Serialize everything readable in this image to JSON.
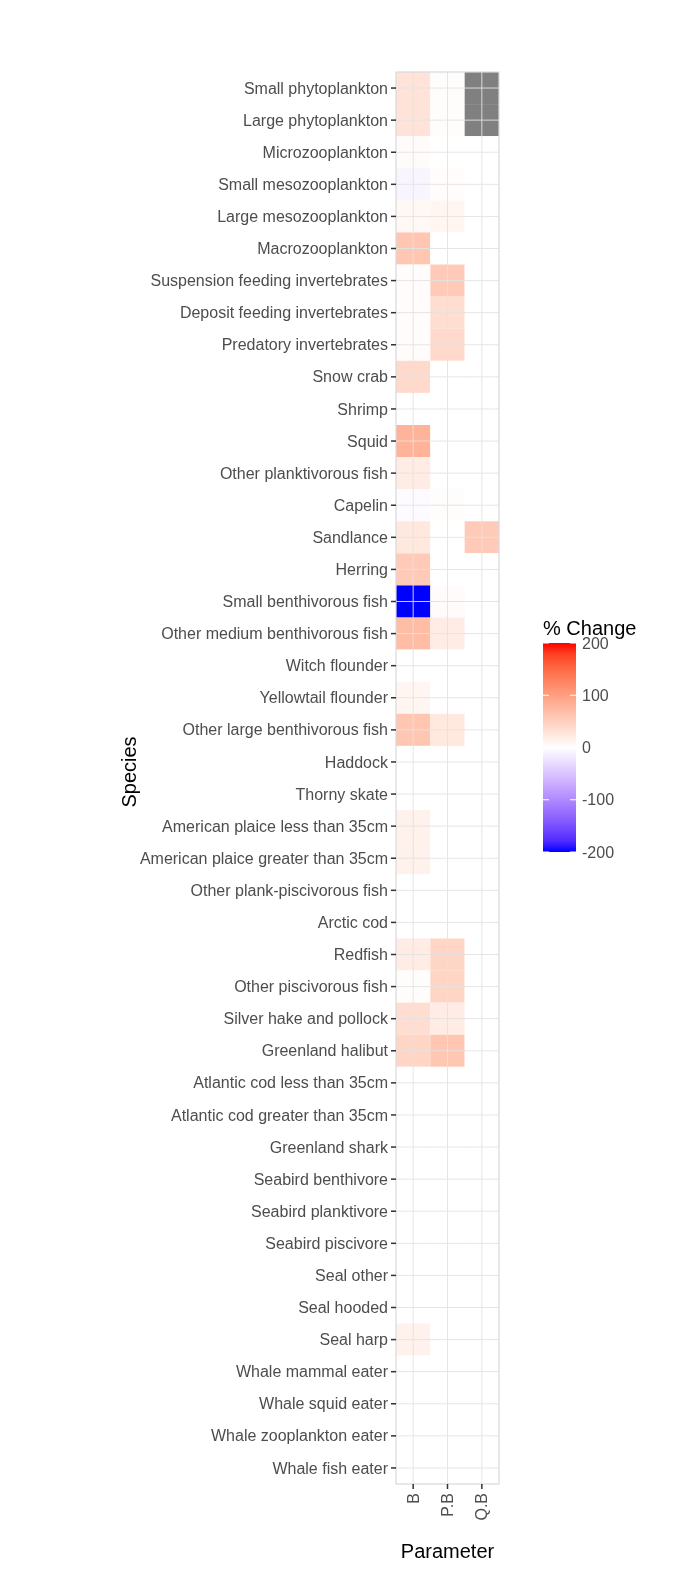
{
  "chart_data": {
    "type": "heatmap",
    "xlabel": "Parameter",
    "ylabel": "Species",
    "clabel": "% Change",
    "categories": [
      "B",
      "P.B",
      "Q.B"
    ],
    "y_categories": [
      "Small phytoplankton",
      "Large phytoplankton",
      "Microzooplankton",
      "Small mesozooplankton",
      "Large mesozooplankton",
      "Macrozooplankton",
      "Suspension feeding invertebrates",
      "Deposit feeding invertebrates",
      "Predatory invertebrates",
      "Snow crab",
      "Shrimp",
      "Squid",
      "Other planktivorous fish",
      "Capelin",
      "Sandlance",
      "Herring",
      "Small benthivorous fish",
      "Other medium benthivorous fish",
      "Witch flounder",
      "Yellowtail flounder",
      "Other large benthivorous fish",
      "Haddock",
      "Thorny skate",
      "American plaice less than 35cm",
      "American plaice greater than 35cm",
      "Other plank-piscivorous fish",
      "Arctic cod",
      "Redfish",
      "Other piscivorous fish",
      "Silver hake and pollock",
      "Greenland halibut",
      "Atlantic cod less than 35cm",
      "Atlantic cod greater than 35cm",
      "Greenland shark",
      "Seabird benthivore",
      "Seabird planktivore",
      "Seabird piscivore",
      "Seal other",
      "Seal hooded",
      "Seal harp",
      "Whale mammal eater",
      "Whale squid eater",
      "Whale zooplankton eater",
      "Whale fish eater"
    ],
    "cells": [
      [
        30,
        2,
        null
      ],
      [
        30,
        2,
        null
      ],
      [
        4,
        0,
        0
      ],
      [
        -8,
        3,
        0
      ],
      [
        8,
        10,
        0
      ],
      [
        60,
        0,
        0
      ],
      [
        3,
        55,
        0
      ],
      [
        3,
        35,
        0
      ],
      [
        3,
        40,
        0
      ],
      [
        40,
        0,
        0
      ],
      [
        0,
        0,
        0
      ],
      [
        80,
        0,
        0
      ],
      [
        20,
        0,
        0
      ],
      [
        -3,
        2,
        0
      ],
      [
        25,
        0,
        55
      ],
      [
        55,
        0,
        0
      ],
      [
        -200,
        4,
        0
      ],
      [
        70,
        20,
        0
      ],
      [
        0,
        0,
        0
      ],
      [
        10,
        0,
        0
      ],
      [
        60,
        25,
        0
      ],
      [
        0,
        0,
        0
      ],
      [
        0,
        0,
        0
      ],
      [
        15,
        0,
        0
      ],
      [
        15,
        0,
        0
      ],
      [
        0,
        0,
        0
      ],
      [
        0,
        0,
        0
      ],
      [
        20,
        45,
        0
      ],
      [
        2,
        45,
        0
      ],
      [
        35,
        20,
        0
      ],
      [
        45,
        60,
        0
      ],
      [
        0,
        0,
        0
      ],
      [
        0,
        0,
        0
      ],
      [
        0,
        0,
        0
      ],
      [
        0,
        0,
        0
      ],
      [
        0,
        0,
        0
      ],
      [
        0,
        0,
        0
      ],
      [
        0,
        0,
        0
      ],
      [
        0,
        0,
        0
      ],
      [
        15,
        0,
        0
      ],
      [
        0,
        0,
        0
      ],
      [
        0,
        0,
        0
      ],
      [
        0,
        0,
        0
      ],
      [
        0,
        0,
        0
      ]
    ],
    "clim": [
      -200,
      200
    ],
    "cticks": [
      -200,
      -100,
      0,
      100,
      200
    ],
    "grid": true
  }
}
